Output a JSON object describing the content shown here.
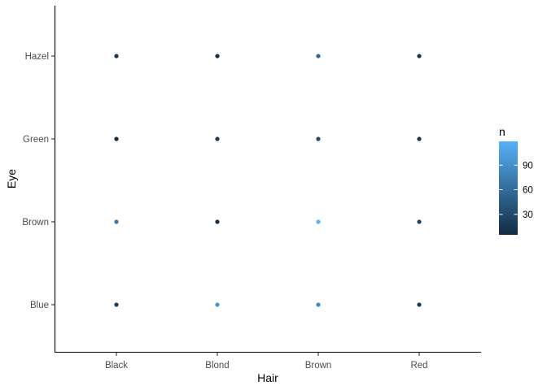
{
  "chart_data": {
    "type": "scatter",
    "title": "",
    "xlabel": "Hair",
    "ylabel": "Eye",
    "x_categories": [
      "Black",
      "Blond",
      "Brown",
      "Red"
    ],
    "y_categories": [
      "Blue",
      "Brown",
      "Green",
      "Hazel"
    ],
    "points": [
      {
        "x": "Black",
        "y": "Blue",
        "n": 20
      },
      {
        "x": "Blond",
        "y": "Blue",
        "n": 94
      },
      {
        "x": "Brown",
        "y": "Blue",
        "n": 84
      },
      {
        "x": "Red",
        "y": "Blue",
        "n": 17
      },
      {
        "x": "Black",
        "y": "Brown",
        "n": 68
      },
      {
        "x": "Blond",
        "y": "Brown",
        "n": 7
      },
      {
        "x": "Brown",
        "y": "Brown",
        "n": 119
      },
      {
        "x": "Red",
        "y": "Brown",
        "n": 26
      },
      {
        "x": "Black",
        "y": "Green",
        "n": 5
      },
      {
        "x": "Blond",
        "y": "Green",
        "n": 16
      },
      {
        "x": "Brown",
        "y": "Green",
        "n": 29
      },
      {
        "x": "Red",
        "y": "Green",
        "n": 14
      },
      {
        "x": "Black",
        "y": "Hazel",
        "n": 15
      },
      {
        "x": "Blond",
        "y": "Hazel",
        "n": 10
      },
      {
        "x": "Brown",
        "y": "Hazel",
        "n": 54
      },
      {
        "x": "Red",
        "y": "Hazel",
        "n": 14
      }
    ],
    "color_scale": {
      "name": "n",
      "low": "#132B43",
      "high": "#56B1F7",
      "min": 5,
      "max": 119,
      "breaks": [
        "30",
        "60",
        "90"
      ]
    },
    "legend_position": "right",
    "grid": false
  }
}
